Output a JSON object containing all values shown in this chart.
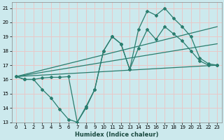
{
  "xlabel": "Humidex (Indice chaleur)",
  "ylabel": "",
  "xlim": [
    -0.5,
    23.5
  ],
  "ylim": [
    13,
    21.4
  ],
  "yticks": [
    13,
    14,
    15,
    16,
    17,
    18,
    19,
    20,
    21
  ],
  "xticks": [
    0,
    1,
    2,
    3,
    4,
    5,
    6,
    7,
    8,
    9,
    10,
    11,
    12,
    13,
    14,
    15,
    16,
    17,
    18,
    19,
    20,
    21,
    22,
    23
  ],
  "bg_color": "#cce9ed",
  "grid_color": "#e8c8c8",
  "line_color": "#2a7d6e",
  "line1": {
    "x": [
      0,
      1,
      2,
      3,
      4,
      5,
      6,
      7,
      8,
      9,
      10,
      11,
      12,
      13,
      14,
      15,
      16,
      17,
      18,
      19,
      20,
      21,
      22,
      23
    ],
    "y": [
      16.2,
      16.0,
      16.0,
      16.1,
      16.15,
      16.15,
      16.2,
      13.0,
      14.0,
      15.3,
      18.0,
      19.0,
      18.5,
      16.7,
      19.5,
      20.8,
      20.5,
      21.0,
      20.3,
      19.7,
      19.0,
      17.5,
      17.1,
      17.0
    ]
  },
  "line2": {
    "x": [
      0,
      1,
      2,
      3,
      4,
      5,
      6,
      7,
      8,
      9,
      10,
      11,
      12,
      13,
      14,
      15,
      16,
      17,
      18,
      19,
      20,
      21,
      22,
      23
    ],
    "y": [
      16.2,
      16.0,
      16.0,
      15.3,
      14.7,
      13.9,
      13.2,
      13.0,
      14.1,
      15.3,
      18.0,
      19.0,
      18.5,
      16.7,
      18.2,
      19.5,
      18.8,
      19.7,
      19.2,
      18.7,
      18.0,
      17.3,
      17.0,
      17.0
    ]
  },
  "straight1": {
    "x": [
      0,
      23
    ],
    "y": [
      16.2,
      19.7
    ]
  },
  "straight2": {
    "x": [
      0,
      23
    ],
    "y": [
      16.2,
      17.0
    ]
  },
  "straight3": {
    "x": [
      0,
      23
    ],
    "y": [
      16.2,
      18.5
    ]
  }
}
